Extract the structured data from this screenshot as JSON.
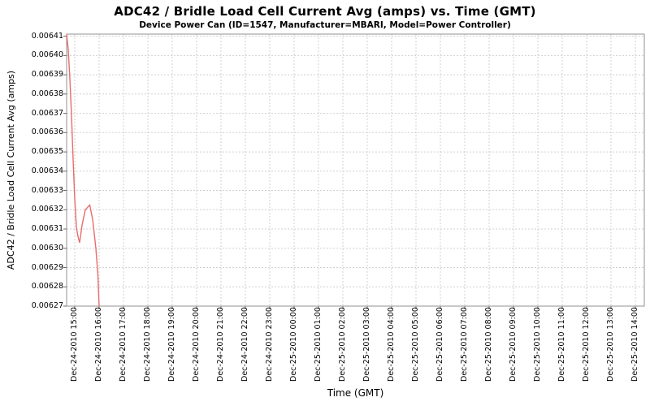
{
  "header": {
    "title": "ADC42 / Bridle Load Cell Current Avg (amps) vs. Time (GMT)",
    "subtitle": "Device Power Can (ID=1547, Manufacturer=MBARI, Model=Power Controller)"
  },
  "colors": {
    "background": "#ffffff",
    "line": "#e86c6c",
    "grid": "#d0d0d0",
    "plot_border": "#909090",
    "tick_mark": "#666666",
    "text": "#000000"
  },
  "chart_data": {
    "type": "line",
    "title": "ADC42 / Bridle Load Cell Current Avg (amps) vs. Time (GMT)",
    "subtitle": "Device Power Can (ID=1547, Manufacturer=MBARI, Model=Power Controller)",
    "grid": true,
    "legend": false,
    "x_axis": {
      "label": "Time (GMT)",
      "min_minutes": -20,
      "max_minutes": 1402,
      "tick_interval_minutes": 60,
      "tick_labels": [
        "Dec-24-2010 15:00",
        "Dec-24-2010 16:00",
        "Dec-24-2010 17:00",
        "Dec-24-2010 18:00",
        "Dec-24-2010 19:00",
        "Dec-24-2010 20:00",
        "Dec-24-2010 21:00",
        "Dec-24-2010 22:00",
        "Dec-24-2010 23:00",
        "Dec-25-2010 00:00",
        "Dec-25-2010 01:00",
        "Dec-25-2010 02:00",
        "Dec-25-2010 03:00",
        "Dec-25-2010 04:00",
        "Dec-25-2010 05:00",
        "Dec-25-2010 06:00",
        "Dec-25-2010 07:00",
        "Dec-25-2010 08:00",
        "Dec-25-2010 09:00",
        "Dec-25-2010 10:00",
        "Dec-25-2010 11:00",
        "Dec-25-2010 12:00",
        "Dec-25-2010 13:00",
        "Dec-25-2010 14:00"
      ]
    },
    "y_axis": {
      "label": "ADC42 / Bridle Load Cell Current Avg (amps)",
      "min": 0.00627,
      "max": 0.0064111,
      "tick_labels": [
        "0.00641",
        "0.00640",
        "0.00639",
        "0.00638",
        "0.00637",
        "0.00636",
        "0.00635",
        "0.00634",
        "0.00633",
        "0.00632",
        "0.00631",
        "0.00630",
        "0.00629",
        "0.00628",
        "0.00627"
      ]
    },
    "series": [
      {
        "color": "#e86c6c",
        "points_minutes_value": [
          [
            -20,
            0.006411
          ],
          [
            -16,
            0.006403
          ],
          [
            -12,
            0.006388
          ],
          [
            -8,
            0.006369
          ],
          [
            -4,
            0.006346
          ],
          [
            0,
            0.0063255
          ],
          [
            4,
            0.006311
          ],
          [
            8,
            0.006306
          ],
          [
            12,
            0.006303
          ],
          [
            18,
            0.006312
          ],
          [
            26,
            0.00632
          ],
          [
            37,
            0.0063225
          ],
          [
            44,
            0.006315
          ],
          [
            52,
            0.0063
          ],
          [
            57,
            0.006286
          ],
          [
            60,
            0.00627
          ]
        ]
      }
    ]
  }
}
